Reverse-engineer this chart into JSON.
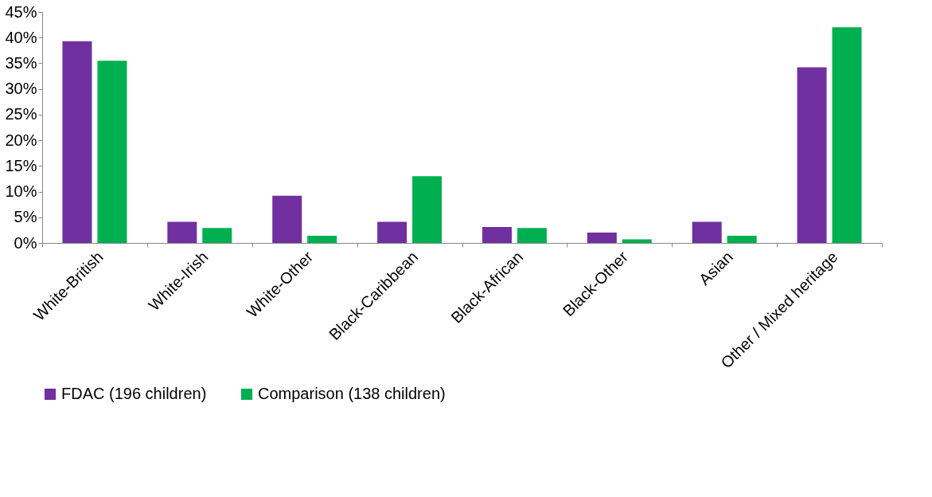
{
  "chart_data": {
    "type": "bar",
    "categories": [
      "White-British",
      "White-Irish",
      "White-Other",
      "Black-Caribbean",
      "Black-African",
      "Black-Other",
      "Asian",
      "Other / Mixed heritage"
    ],
    "series": [
      {
        "name": "FDAC (196 children)",
        "color": "#7030a0",
        "values": [
          39.3,
          4.1,
          9.2,
          4.1,
          3.1,
          2.0,
          4.1,
          34.2
        ]
      },
      {
        "name": "Comparison (138 children)",
        "color": "#00b050",
        "values": [
          35.5,
          2.9,
          1.4,
          13.0,
          2.9,
          0.7,
          1.4,
          42.0
        ]
      }
    ],
    "ylim": [
      0,
      45
    ],
    "yticks": [
      {
        "value": 0,
        "label": "0%"
      },
      {
        "value": 5,
        "label": "5%"
      },
      {
        "value": 10,
        "label": "10%"
      },
      {
        "value": 15,
        "label": "15%"
      },
      {
        "value": 20,
        "label": "20%"
      },
      {
        "value": 25,
        "label": "25%"
      },
      {
        "value": 30,
        "label": "30%"
      },
      {
        "value": 35,
        "label": "35%"
      },
      {
        "value": 40,
        "label": "40%"
      },
      {
        "value": 45,
        "label": "45%"
      }
    ],
    "grid": false,
    "legend": "bottom"
  }
}
